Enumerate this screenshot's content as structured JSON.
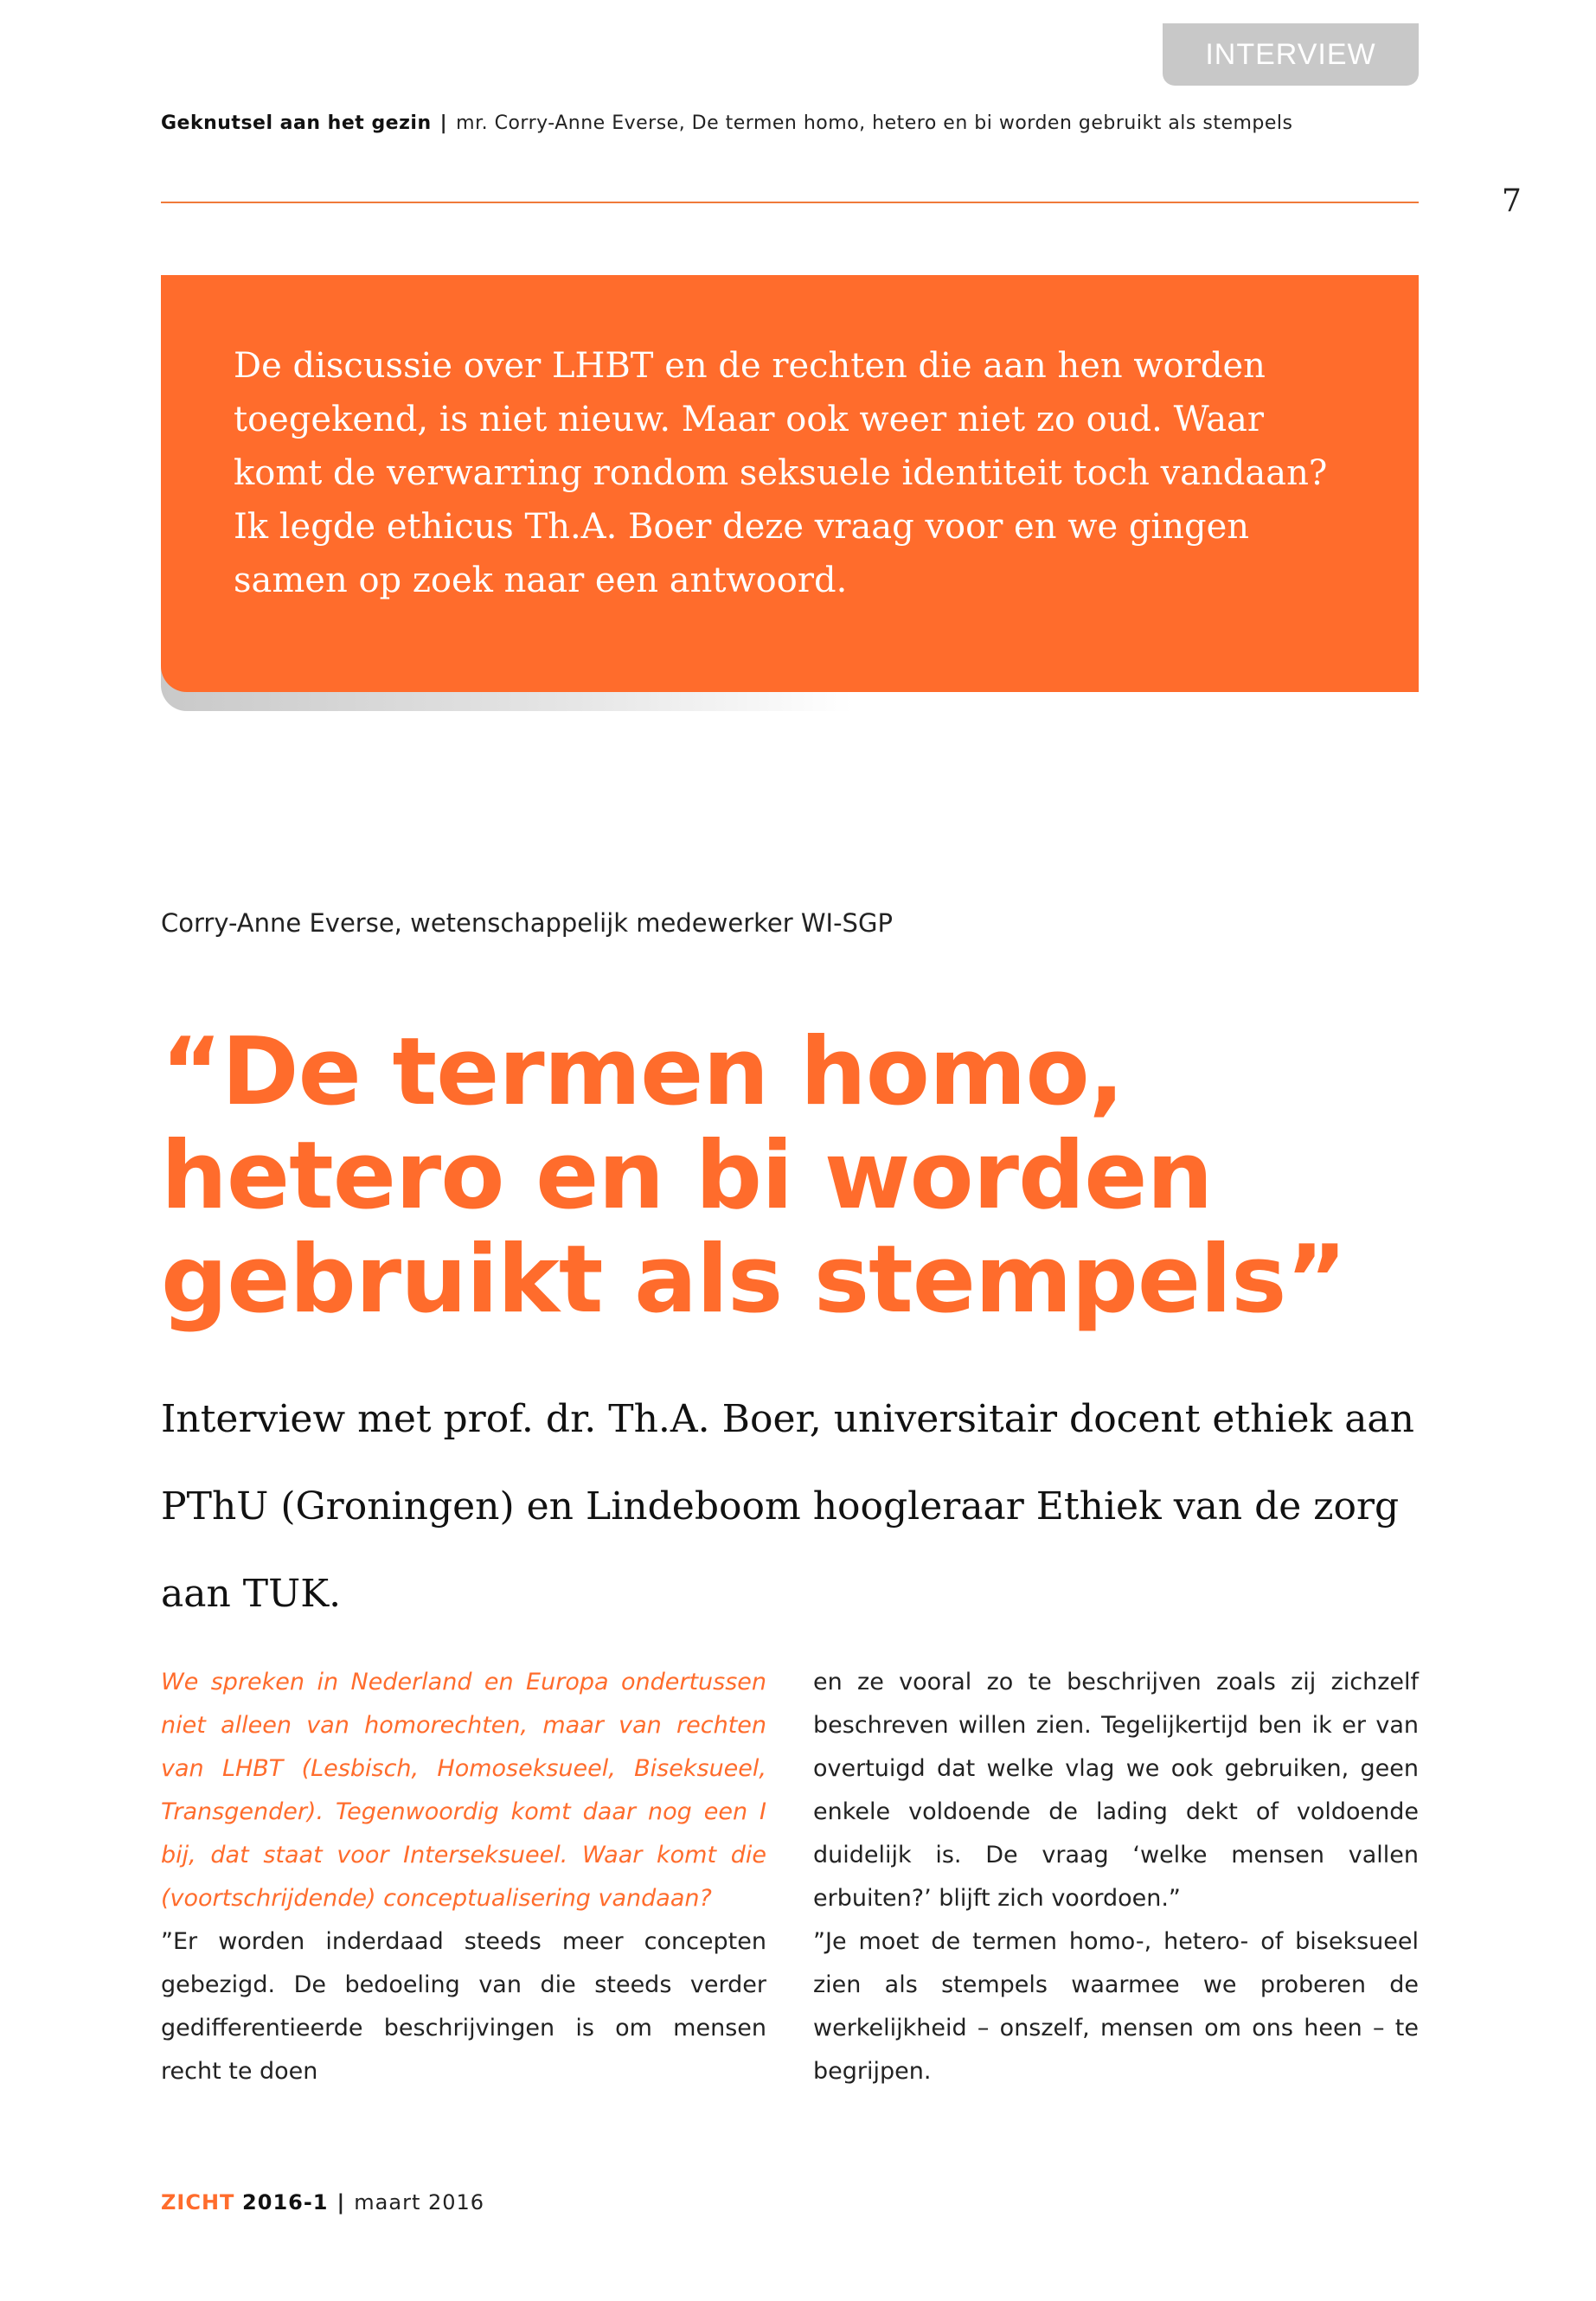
{
  "section_tab": "INTERVIEW",
  "running_head": {
    "section": "Geknutsel aan het gezin",
    "separator": "|",
    "article": "mr. Corry-Anne Everse, De termen homo, hetero en bi worden gebruikt als stempels"
  },
  "page_number": "7",
  "accent_color": "#ff6c2c",
  "intro": "De discussie over LHBT en de rechten die aan hen worden toegekend, is niet nieuw. Maar ook weer niet zo oud. Waar komt de verwarring rondom seksuele identiteit toch vandaan? Ik legde ethicus Th.A. Boer deze vraag voor en we gingen samen op zoek naar een antwoord.",
  "byline": "Corry-Anne Everse, wetenschappelijk medewerker WI-SGP",
  "title": "“De termen homo, hetero en bi worden gebruikt als stempels”",
  "subtitle": "Interview met prof. dr. Th.A. Boer, universitair docent ethiek aan PThU (Groningen) en Lindeboom hoogleraar Ethiek van de zorg aan TUK.",
  "body": {
    "question_1": "We spreken in Nederland en Europa ondertussen niet alleen van homorechten, maar van rechten van LHBT (Lesbisch, Homoseksueel, Biseksueel, Transgender). Tegenwoordig komt daar nog een I bij, dat staat voor Interseksueel. Waar komt die (voortschrijdende) conceptualisering vandaan?",
    "answer_1a": "”Er worden inderdaad steeds meer concepten gebezigd. De bedoeling van die steeds verder gedifferentieerde beschrijvingen is om mensen recht te doen",
    "answer_1b": "en ze vooral zo te beschrijven zoals zij zichzelf beschreven willen zien. Tegelijkertijd ben ik er van overtuigd dat welke vlag we ook gebruiken, geen enkele voldoende de lading dekt of voldoende duidelijk is. De vraag ‘welke mensen vallen erbuiten?’ blijft zich voordoen.”",
    "answer_2": "”Je moet de termen homo-, hetero- of biseksueel zien als stempels waarmee we proberen de werkelijkheid – onszelf, mensen om ons heen – te begrijpen."
  },
  "footer": {
    "brand": "ZICHT",
    "issue": "2016-1",
    "separator": "|",
    "date": "maart 2016"
  }
}
